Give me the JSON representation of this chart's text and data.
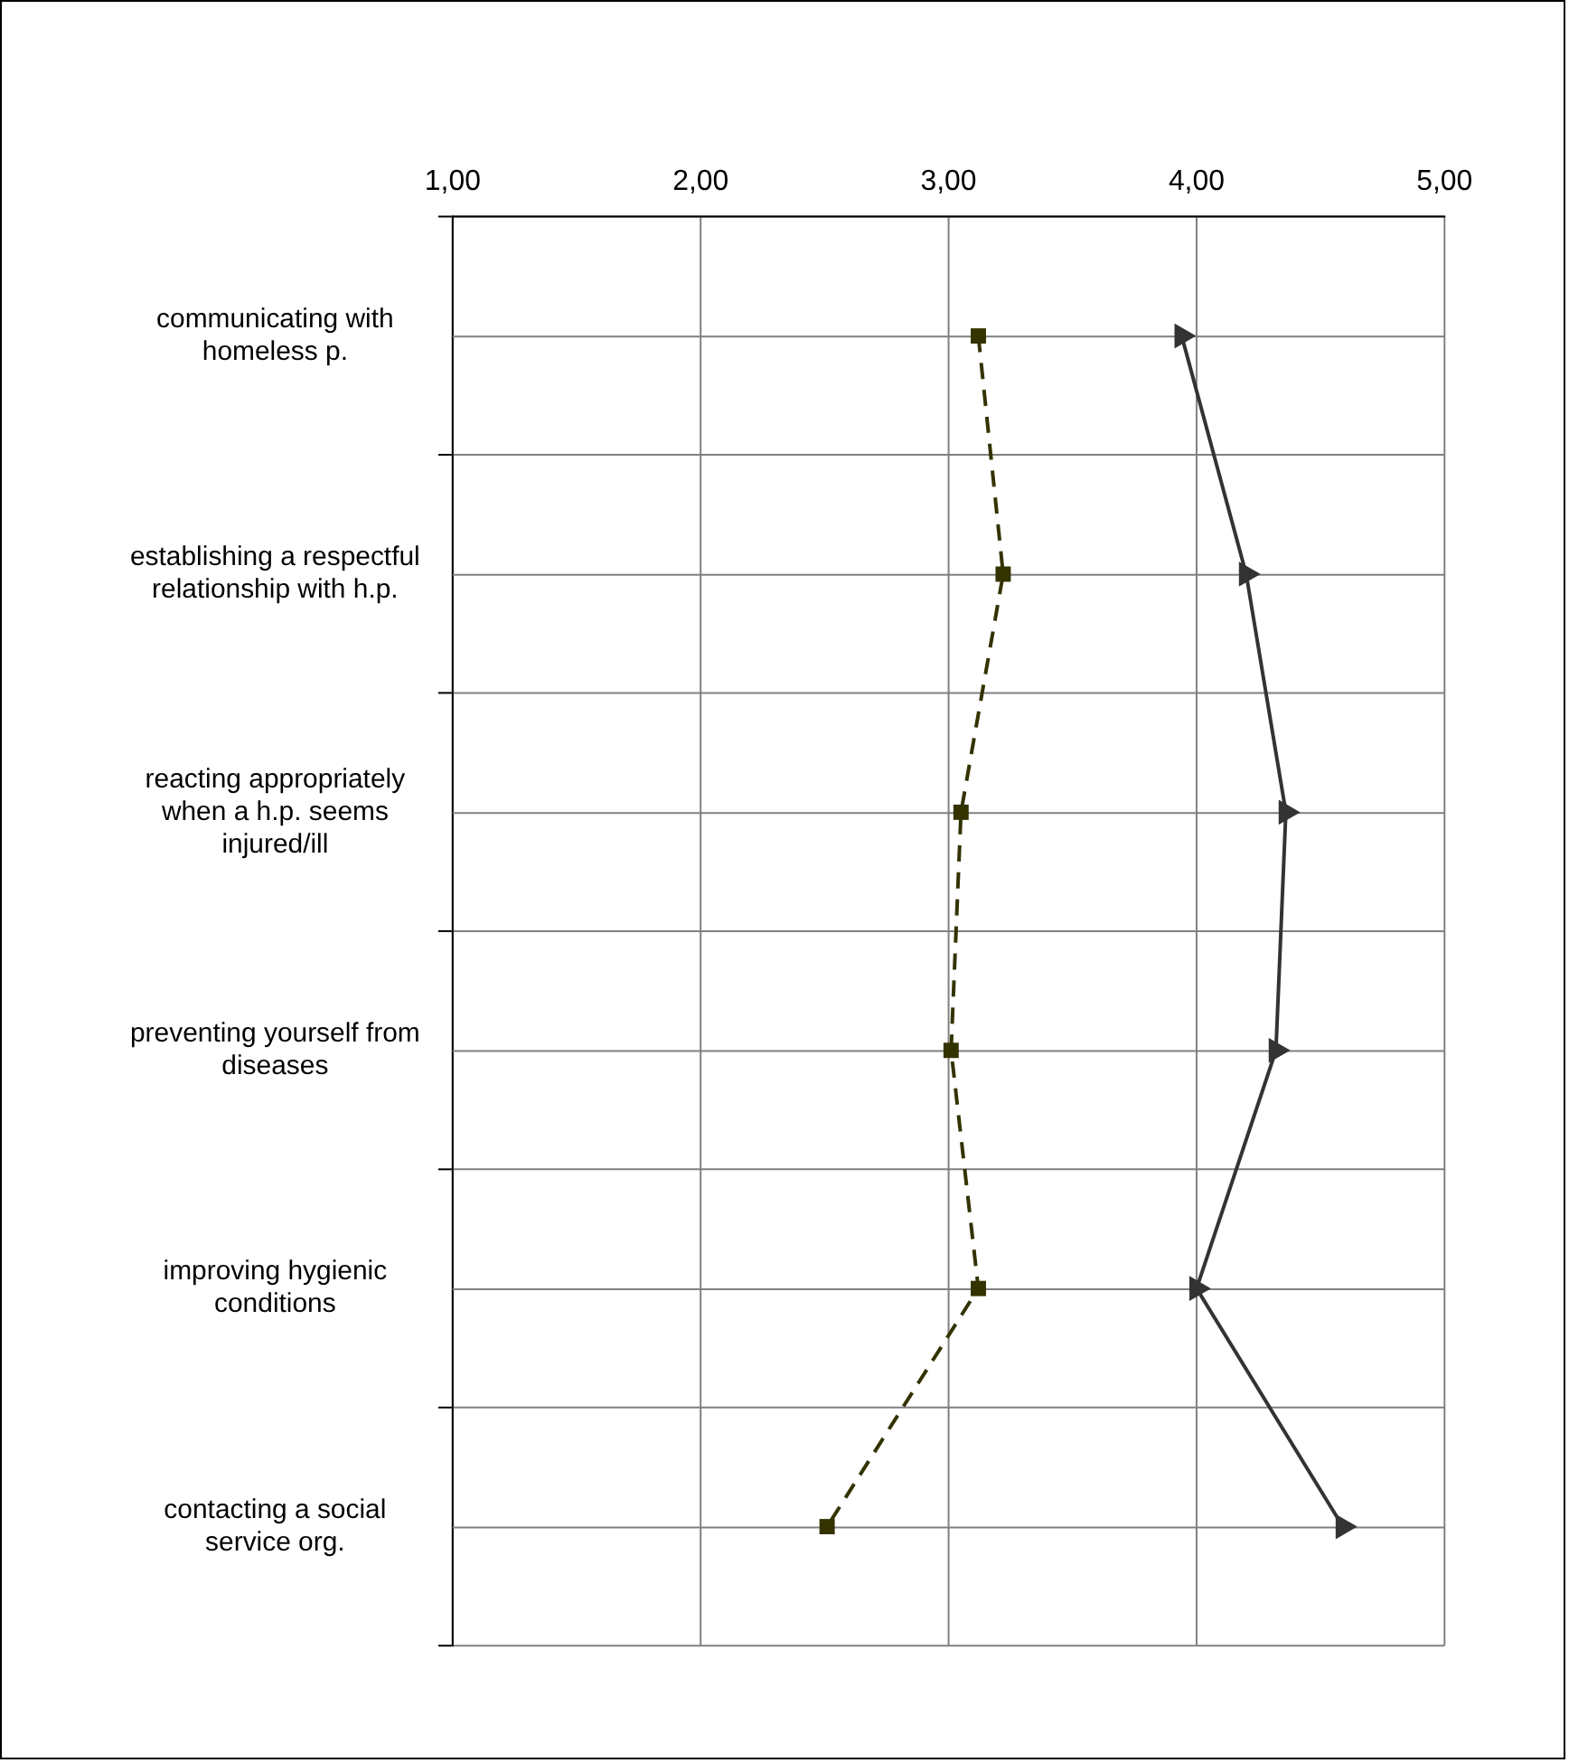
{
  "chart_data": {
    "type": "line",
    "orientation": "horizontal",
    "categories": [
      "communicating with homeless p.",
      "establishing a respectful relationship with h.p.",
      "reacting appropriately when a h.p. seems injured/ill",
      "preventing yourself from diseases",
      "improving hygienic conditions",
      "contacting a social service org."
    ],
    "series": [
      {
        "color": "#333300",
        "marker": "square",
        "line_style": "dashed",
        "values": [
          3.12,
          3.22,
          3.05,
          3.01,
          3.12,
          2.51
        ]
      },
      {
        "color": "#333333",
        "marker": "triangle",
        "line_style": "solid",
        "values": [
          3.94,
          4.2,
          4.36,
          4.32,
          4.0,
          4.59
        ]
      }
    ],
    "xlim": [
      1,
      5
    ],
    "xticks": [
      {
        "value": 1,
        "label": "1,00"
      },
      {
        "value": 2,
        "label": "2,00"
      },
      {
        "value": 3,
        "label": "3,00"
      },
      {
        "value": 4,
        "label": "4,00"
      },
      {
        "value": 5,
        "label": "5,00"
      }
    ],
    "grid": true,
    "legend": false
  }
}
